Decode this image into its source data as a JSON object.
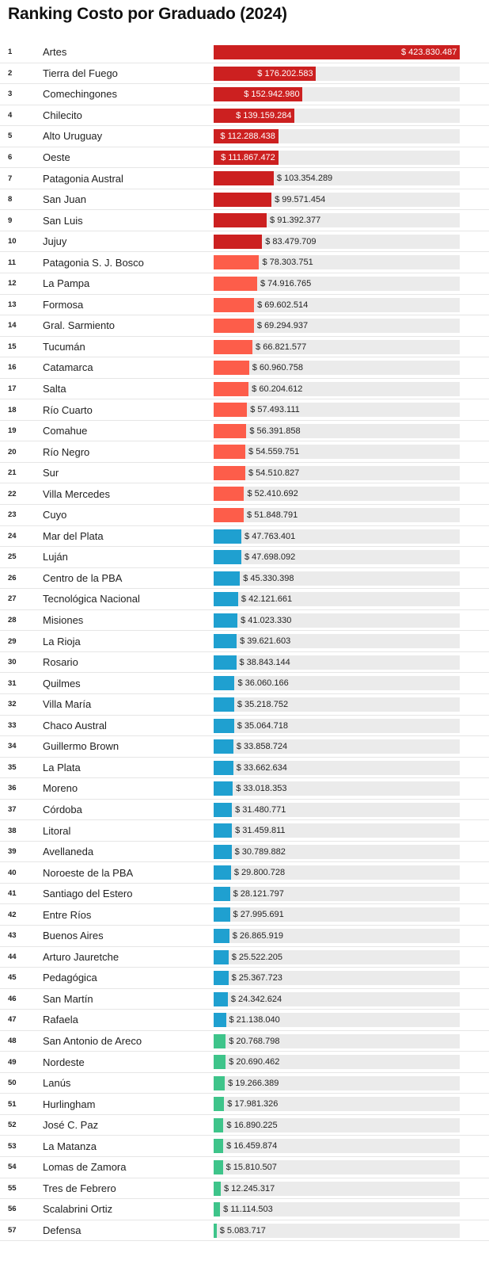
{
  "title": "Ranking Costo por Graduado (2024)",
  "colors": {
    "dark_red": "#cc2020",
    "salmon": "#fd5d4a",
    "blue": "#1fa0d0",
    "green": "#3ec48a",
    "track": "#ebebeb"
  },
  "chart_data": {
    "type": "bar",
    "orientation": "horizontal",
    "value_prefix": "$ ",
    "xlim": [
      0,
      423830487
    ],
    "rows": [
      {
        "rank": "1",
        "name": "Artes",
        "value": 423830487,
        "label": "$ 423.830.487",
        "color": "dark_red"
      },
      {
        "rank": "2",
        "name": "Tierra del Fuego",
        "value": 176202583,
        "label": "$ 176.202.583",
        "color": "dark_red"
      },
      {
        "rank": "3",
        "name": "Comechingones",
        "value": 152942980,
        "label": "$ 152.942.980",
        "color": "dark_red"
      },
      {
        "rank": "4",
        "name": "Chilecito",
        "value": 139159284,
        "label": "$ 139.159.284",
        "color": "dark_red"
      },
      {
        "rank": "5",
        "name": "Alto Uruguay",
        "value": 112288438,
        "label": "$ 112.288.438",
        "color": "dark_red"
      },
      {
        "rank": "6",
        "name": "Oeste",
        "value": 111867472,
        "label": "$ 111.867.472",
        "color": "dark_red"
      },
      {
        "rank": "7",
        "name": "Patagonia Austral",
        "value": 103354289,
        "label": "$ 103.354.289",
        "color": "dark_red"
      },
      {
        "rank": "8",
        "name": "San Juan",
        "value": 99571454,
        "label": "$ 99.571.454",
        "color": "dark_red"
      },
      {
        "rank": "9",
        "name": "San Luis",
        "value": 91392377,
        "label": "$ 91.392.377",
        "color": "dark_red"
      },
      {
        "rank": "10",
        "name": "Jujuy",
        "value": 83479709,
        "label": "$ 83.479.709",
        "color": "dark_red"
      },
      {
        "rank": "11",
        "name": "Patagonia S. J. Bosco",
        "value": 78303751,
        "label": "$ 78.303.751",
        "color": "salmon"
      },
      {
        "rank": "12",
        "name": "La Pampa",
        "value": 74916765,
        "label": "$ 74.916.765",
        "color": "salmon"
      },
      {
        "rank": "13",
        "name": "Formosa",
        "value": 69602514,
        "label": "$ 69.602.514",
        "color": "salmon"
      },
      {
        "rank": "14",
        "name": "Gral. Sarmiento",
        "value": 69294937,
        "label": "$ 69.294.937",
        "color": "salmon"
      },
      {
        "rank": "15",
        "name": "Tucumán",
        "value": 66821577,
        "label": "$ 66.821.577",
        "color": "salmon"
      },
      {
        "rank": "16",
        "name": "Catamarca",
        "value": 60960758,
        "label": "$ 60.960.758",
        "color": "salmon"
      },
      {
        "rank": "17",
        "name": "Salta",
        "value": 60204612,
        "label": "$ 60.204.612",
        "color": "salmon"
      },
      {
        "rank": "18",
        "name": "Río Cuarto",
        "value": 57493111,
        "label": "$ 57.493.111",
        "color": "salmon"
      },
      {
        "rank": "19",
        "name": "Comahue",
        "value": 56391858,
        "label": "$ 56.391.858",
        "color": "salmon"
      },
      {
        "rank": "20",
        "name": "Río Negro",
        "value": 54559751,
        "label": "$ 54.559.751",
        "color": "salmon"
      },
      {
        "rank": "21",
        "name": "Sur",
        "value": 54510827,
        "label": "$ 54.510.827",
        "color": "salmon"
      },
      {
        "rank": "22",
        "name": "Villa Mercedes",
        "value": 52410692,
        "label": "$ 52.410.692",
        "color": "salmon"
      },
      {
        "rank": "23",
        "name": "Cuyo",
        "value": 51848791,
        "label": "$ 51.848.791",
        "color": "salmon"
      },
      {
        "rank": "24",
        "name": "Mar del Plata",
        "value": 47763401,
        "label": "$ 47.763.401",
        "color": "blue"
      },
      {
        "rank": "25",
        "name": "Luján",
        "value": 47698092,
        "label": "$ 47.698.092",
        "color": "blue"
      },
      {
        "rank": "26",
        "name": "Centro de la PBA",
        "value": 45330398,
        "label": "$ 45.330.398",
        "color": "blue"
      },
      {
        "rank": "27",
        "name": "Tecnológica Nacional",
        "value": 42121661,
        "label": "$ 42.121.661",
        "color": "blue"
      },
      {
        "rank": "28",
        "name": "Misiones",
        "value": 41023330,
        "label": "$ 41.023.330",
        "color": "blue"
      },
      {
        "rank": "29",
        "name": "La Rioja",
        "value": 39621603,
        "label": "$ 39.621.603",
        "color": "blue"
      },
      {
        "rank": "30",
        "name": "Rosario",
        "value": 38843144,
        "label": "$ 38.843.144",
        "color": "blue"
      },
      {
        "rank": "31",
        "name": "Quilmes",
        "value": 36060166,
        "label": "$ 36.060.166",
        "color": "blue"
      },
      {
        "rank": "32",
        "name": "Villa María",
        "value": 35218752,
        "label": "$ 35.218.752",
        "color": "blue"
      },
      {
        "rank": "33",
        "name": "Chaco Austral",
        "value": 35064718,
        "label": "$ 35.064.718",
        "color": "blue"
      },
      {
        "rank": "34",
        "name": "Guillermo Brown",
        "value": 33858724,
        "label": "$ 33.858.724",
        "color": "blue"
      },
      {
        "rank": "35",
        "name": "La Plata",
        "value": 33662634,
        "label": "$ 33.662.634",
        "color": "blue"
      },
      {
        "rank": "36",
        "name": "Moreno",
        "value": 33018353,
        "label": "$ 33.018.353",
        "color": "blue"
      },
      {
        "rank": "37",
        "name": "Córdoba",
        "value": 31480771,
        "label": "$ 31.480.771",
        "color": "blue"
      },
      {
        "rank": "38",
        "name": "Litoral",
        "value": 31459811,
        "label": "$ 31.459.811",
        "color": "blue"
      },
      {
        "rank": "39",
        "name": "Avellaneda",
        "value": 30789882,
        "label": "$ 30.789.882",
        "color": "blue"
      },
      {
        "rank": "40",
        "name": "Noroeste de la PBA",
        "value": 29800728,
        "label": "$ 29.800.728",
        "color": "blue"
      },
      {
        "rank": "41",
        "name": "Santiago del Estero",
        "value": 28121797,
        "label": "$ 28.121.797",
        "color": "blue"
      },
      {
        "rank": "42",
        "name": "Entre Ríos",
        "value": 27995691,
        "label": "$ 27.995.691",
        "color": "blue"
      },
      {
        "rank": "43",
        "name": "Buenos Aires",
        "value": 26865919,
        "label": "$ 26.865.919",
        "color": "blue"
      },
      {
        "rank": "44",
        "name": "Arturo Jauretche",
        "value": 25522205,
        "label": "$ 25.522.205",
        "color": "blue"
      },
      {
        "rank": "45",
        "name": "Pedagógica",
        "value": 25367723,
        "label": "$ 25.367.723",
        "color": "blue"
      },
      {
        "rank": "46",
        "name": "San Martín",
        "value": 24342624,
        "label": "$ 24.342.624",
        "color": "blue"
      },
      {
        "rank": "47",
        "name": "Rafaela",
        "value": 21138040,
        "label": "$ 21.138.040",
        "color": "blue"
      },
      {
        "rank": "48",
        "name": "San Antonio de Areco",
        "value": 20768798,
        "label": "$ 20.768.798",
        "color": "green"
      },
      {
        "rank": "49",
        "name": "Nordeste",
        "value": 20690462,
        "label": "$ 20.690.462",
        "color": "green"
      },
      {
        "rank": "50",
        "name": "Lanús",
        "value": 19266389,
        "label": "$ 19.266.389",
        "color": "green"
      },
      {
        "rank": "51",
        "name": "Hurlingham",
        "value": 17981326,
        "label": "$ 17.981.326",
        "color": "green"
      },
      {
        "rank": "52",
        "name": "José C. Paz",
        "value": 16890225,
        "label": "$ 16.890.225",
        "color": "green"
      },
      {
        "rank": "53",
        "name": "La Matanza",
        "value": 16459874,
        "label": "$ 16.459.874",
        "color": "green"
      },
      {
        "rank": "54",
        "name": "Lomas de Zamora",
        "value": 15810507,
        "label": "$ 15.810.507",
        "color": "green"
      },
      {
        "rank": "55",
        "name": "Tres de Febrero",
        "value": 12245317,
        "label": "$ 12.245.317",
        "color": "green"
      },
      {
        "rank": "56",
        "name": "Scalabrini Ortiz",
        "value": 11114503,
        "label": "$ 11.114.503",
        "color": "green"
      },
      {
        "rank": "57",
        "name": "Defensa",
        "value": 5083717,
        "label": "$ 5.083.717",
        "color": "green"
      }
    ]
  }
}
